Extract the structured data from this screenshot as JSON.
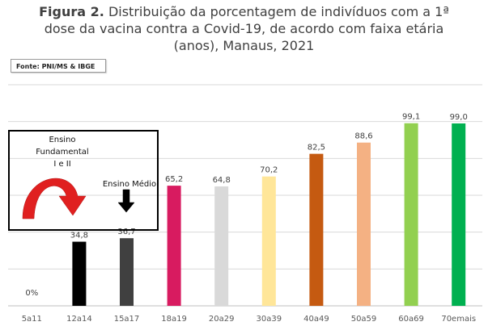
{
  "title": {
    "prefix": "Figura 2.",
    "line1": "Distribuição da porcentagem de indivíduos com a 1ª",
    "line2": "dose da vacina contra a Covid-19, de acordo com faixa etária",
    "line3": "(anos), Manaus, 2021"
  },
  "source": "Fonte: PNI/MS & IBGE",
  "callout": {
    "fundamental_lines": [
      "Ensino",
      "Fundamental",
      "I e II"
    ],
    "medio": "Ensino Médio"
  },
  "colors": {
    "gridline": "#d9d9d9",
    "axis": "#bfbfbf",
    "arrow_red": "#e02020",
    "arrow_black": "#000000"
  },
  "chart_data": {
    "type": "bar",
    "title": "Distribuição da porcentagem de indivíduos com a 1ª dose da vacina contra a Covid-19, de acordo com faixa etária (anos), Manaus, 2021",
    "xlabel": "",
    "ylabel": "",
    "ylim": [
      0,
      120
    ],
    "grid": true,
    "categories": [
      "5a11",
      "12a14",
      "15a17",
      "18a19",
      "20a29",
      "30a39",
      "40a49",
      "50a59",
      "60a69",
      "70emais"
    ],
    "values": [
      0,
      34.8,
      36.7,
      65.2,
      64.8,
      70.2,
      82.5,
      88.6,
      99.1,
      99.0
    ],
    "labels": [
      "0%",
      "34,8",
      "36,7",
      "65,2",
      "64,8",
      "70,2",
      "82,5",
      "88,6",
      "99,1",
      "99,0"
    ],
    "bar_colors": [
      "#a6a6a6",
      "#000000",
      "#404040",
      "#d81b60",
      "#d9d9d9",
      "#ffe699",
      "#c55a11",
      "#f4b183",
      "#92d050",
      "#00b050"
    ]
  }
}
